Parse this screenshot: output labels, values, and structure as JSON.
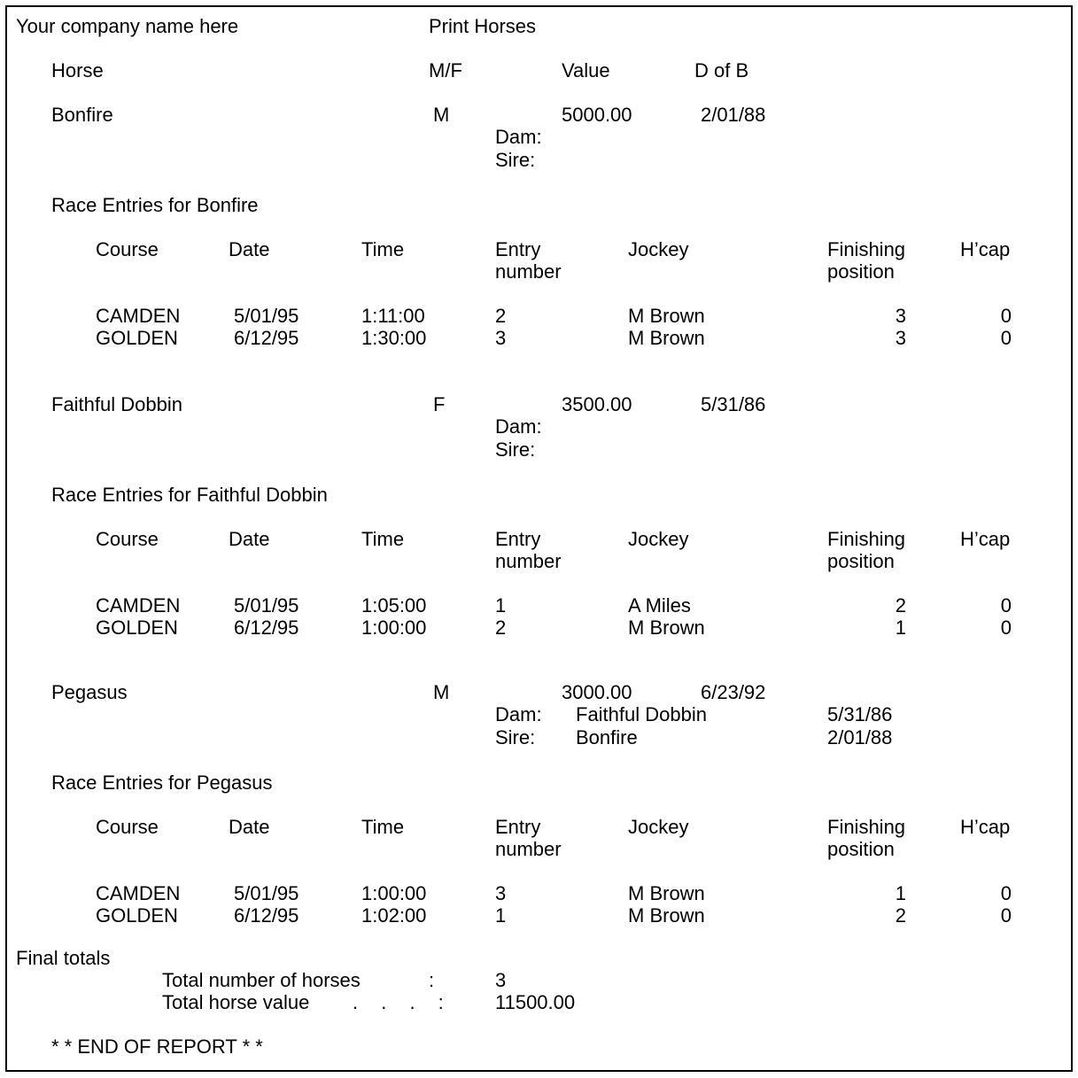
{
  "header": {
    "company": "Your company name here",
    "title": "Print Horses"
  },
  "columns": {
    "horse": "Horse",
    "sex": "M/F",
    "value": "Value",
    "dob": "D of B"
  },
  "labels": {
    "dam": "Dam:",
    "sire": "Sire:"
  },
  "race_columns": {
    "course": "Course",
    "date": "Date",
    "time": "Time",
    "entry": "Entry number",
    "jockey": "Jockey",
    "position": "Finishing position",
    "hcap": "H’cap"
  },
  "horses": [
    {
      "name": "Bonfire",
      "sex": "M",
      "value": "5000.00",
      "dob": "2/01/88",
      "dam": null,
      "sire": null,
      "entries_title": "Race Entries for Bonfire",
      "races": [
        {
          "course": "CAMDEN",
          "date": "5/01/95",
          "time": "1:11:00",
          "entry": 2,
          "jockey": "M Brown",
          "position": 3,
          "hcap": 0
        },
        {
          "course": "GOLDEN",
          "date": "6/12/95",
          "time": "1:30:00",
          "entry": 3,
          "jockey": "M Brown",
          "position": 3,
          "hcap": 0
        }
      ]
    },
    {
      "name": "Faithful Dobbin",
      "sex": "F",
      "value": "3500.00",
      "dob": "5/31/86",
      "dam": null,
      "sire": null,
      "entries_title": "Race Entries for Faithful Dobbin",
      "races": [
        {
          "course": "CAMDEN",
          "date": "5/01/95",
          "time": "1:05:00",
          "entry": 1,
          "jockey": "A Miles",
          "position": 2,
          "hcap": 0
        },
        {
          "course": "GOLDEN",
          "date": "6/12/95",
          "time": "1:00:00",
          "entry": 2,
          "jockey": "M Brown",
          "position": 1,
          "hcap": 0
        }
      ]
    },
    {
      "name": "Pegasus",
      "sex": "M",
      "value": "3000.00",
      "dob": "6/23/92",
      "dam": {
        "name": "Faithful Dobbin",
        "dob": "5/31/86"
      },
      "sire": {
        "name": "Bonfire",
        "dob": "2/01/88"
      },
      "entries_title": "Race Entries for Pegasus",
      "races": [
        {
          "course": "CAMDEN",
          "date": "5/01/95",
          "time": "1:00:00",
          "entry": 3,
          "jockey": "M Brown",
          "position": 1,
          "hcap": 0
        },
        {
          "course": "GOLDEN",
          "date": "6/12/95",
          "time": "1:02:00",
          "entry": 1,
          "jockey": "M Brown",
          "position": 2,
          "hcap": 0
        }
      ]
    }
  ],
  "totals": {
    "title": "Final totals",
    "count_label": "Total number of horses",
    "count_sep": ":",
    "count": 3,
    "value_label": "Total horse value",
    "value_sep": ". . . :",
    "value": "11500.00"
  },
  "footer": "* * END OF REPORT * *"
}
